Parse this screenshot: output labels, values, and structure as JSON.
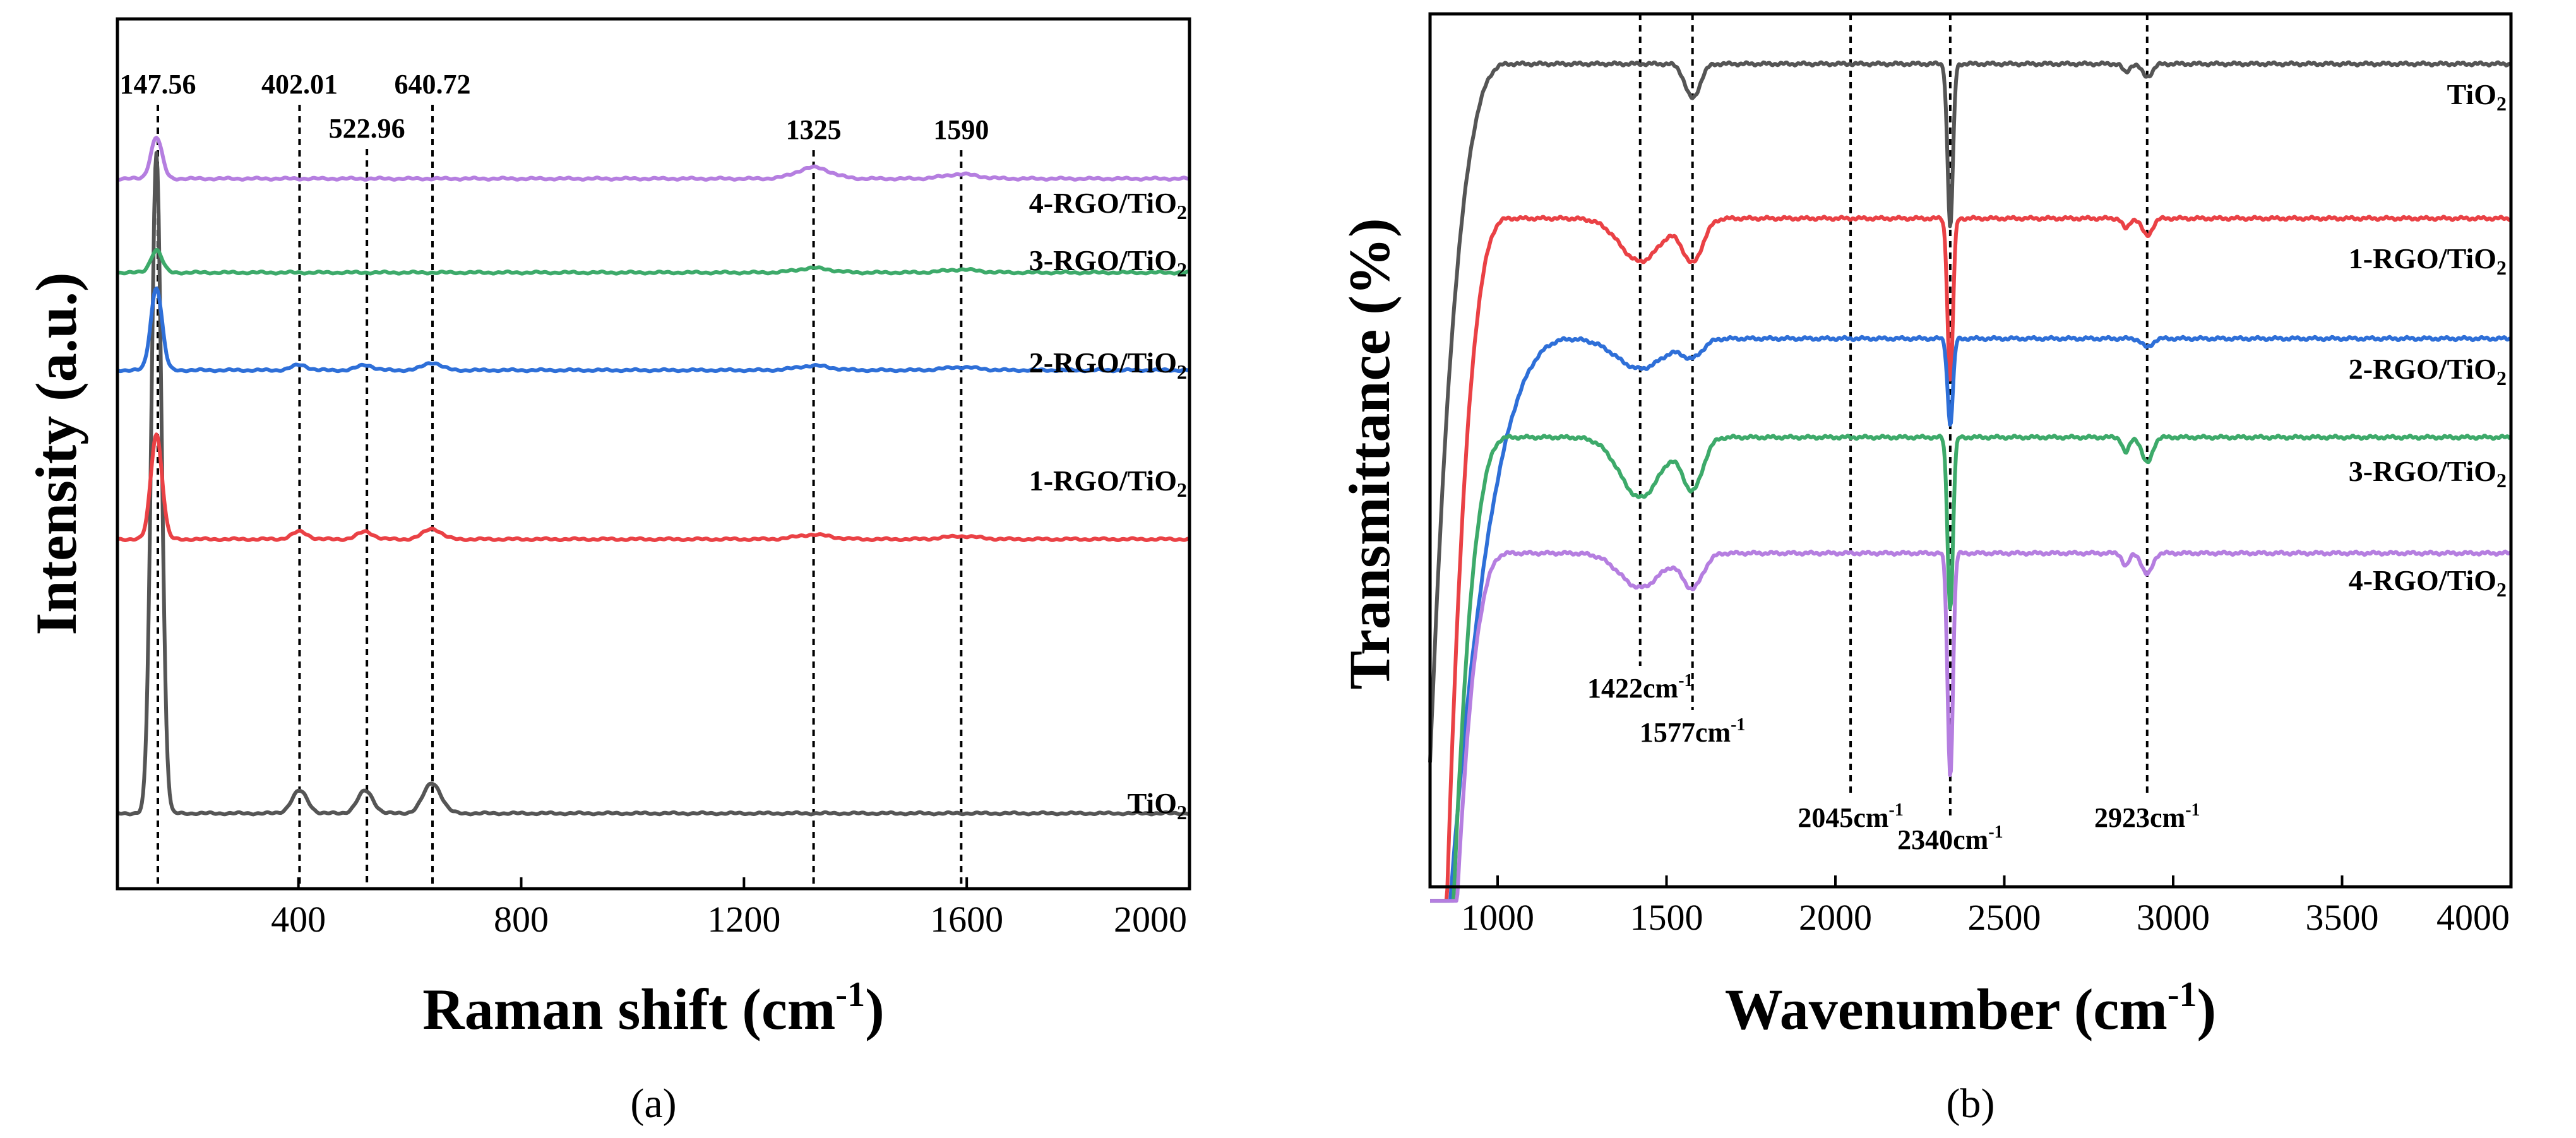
{
  "chart_data": [
    {
      "panel": "a",
      "panel_label": "(a)",
      "type": "line",
      "title": "",
      "xlabel": "Raman shift (cm⁻¹)",
      "xlabel_main": "Raman shift (cm",
      "xlabel_sup": "-1",
      "xlabel_close": ")",
      "ylabel": "Intensity (a.u.)",
      "xlim": [
        75,
        2000
      ],
      "ylim": [
        0,
        1
      ],
      "xticks": [
        400,
        800,
        1200,
        1600,
        2000
      ],
      "xtick_labels": [
        "400",
        "800",
        "1200",
        "1600",
        "2000"
      ],
      "reference_lines": [
        {
          "x": 147.56,
          "label": "147.56"
        },
        {
          "x": 402.01,
          "label": "402.01"
        },
        {
          "x": 522.96,
          "label": "522.96"
        },
        {
          "x": 640.72,
          "label": "640.72"
        },
        {
          "x": 1325,
          "label": "1325"
        },
        {
          "x": 1590,
          "label": "1590"
        }
      ],
      "series": [
        {
          "name": "TiO2",
          "label_main": "TiO",
          "label_sub": "2",
          "color": "#555555",
          "baseline": 0.06,
          "peaks": [
            [
              145,
              0.88,
              9
            ],
            [
              402,
              0.03,
              14
            ],
            [
              520,
              0.03,
              14
            ],
            [
              640,
              0.04,
              16
            ]
          ]
        },
        {
          "name": "1-RGO/TiO2",
          "label_main": "1-RGO/TiO",
          "label_sub": "2",
          "color": "#ea4145",
          "baseline": 0.425,
          "peaks": [
            [
              145,
              0.14,
              10
            ],
            [
              402,
              0.01,
              14
            ],
            [
              520,
              0.01,
              14
            ],
            [
              640,
              0.014,
              16
            ],
            [
              1325,
              0.006,
              30
            ],
            [
              1590,
              0.004,
              30
            ]
          ]
        },
        {
          "name": "2-RGO/TiO2",
          "label_main": "2-RGO/TiO",
          "label_sub": "2",
          "color": "#2e6fd8",
          "baseline": 0.65,
          "peaks": [
            [
              145,
              0.11,
              10
            ],
            [
              402,
              0.007,
              14
            ],
            [
              520,
              0.007,
              14
            ],
            [
              640,
              0.01,
              16
            ],
            [
              1325,
              0.006,
              30
            ],
            [
              1590,
              0.004,
              30
            ]
          ]
        },
        {
          "name": "3-RGO/TiO2",
          "label_main": "3-RGO/TiO",
          "label_sub": "2",
          "color": "#3daa6a",
          "baseline": 0.78,
          "peaks": [
            [
              145,
              0.03,
              10
            ],
            [
              1325,
              0.006,
              30
            ],
            [
              1590,
              0.004,
              30
            ]
          ]
        },
        {
          "name": "4-RGO/TiO2",
          "label_main": "4-RGO/TiO",
          "label_sub": "2",
          "color": "#b57ee0",
          "baseline": 0.905,
          "peaks": [
            [
              145,
              0.055,
              10
            ],
            [
              1325,
              0.015,
              30
            ],
            [
              1590,
              0.006,
              30
            ]
          ]
        }
      ]
    },
    {
      "panel": "b",
      "panel_label": "(b)",
      "type": "line",
      "title": "",
      "xlabel": "Wavenumber (cm⁻¹)",
      "xlabel_main": "Wavenumber (cm",
      "xlabel_sup": "-1",
      "xlabel_close": ")",
      "ylabel": "Transmittance (%)",
      "xlim": [
        800,
        4000
      ],
      "ylim": [
        0,
        1
      ],
      "xticks": [
        1000,
        1500,
        2000,
        2500,
        3000,
        3500,
        4000
      ],
      "xtick_labels": [
        "1000",
        "1500",
        "2000",
        "2500",
        "3000",
        "3500",
        "4000"
      ],
      "reference_lines": [
        {
          "x": 1422,
          "label": "1422cm",
          "label_sup": "-1"
        },
        {
          "x": 1577,
          "label": "1577cm",
          "label_sup": "-1"
        },
        {
          "x": 2045,
          "label": "2045cm",
          "label_sup": "-1"
        },
        {
          "x": 2340,
          "label": "2340cm",
          "label_sup": "-1"
        },
        {
          "x": 2923,
          "label": "2923cm",
          "label_sup": "-1"
        }
      ],
      "series": [
        {
          "name": "TiO2",
          "label_main": "TiO",
          "label_sub": "2",
          "color": "#555555",
          "plateau": 0.955,
          "rise_start": 800,
          "rise_end": 1040,
          "start_value": 0.14,
          "dips": [
            [
              1577,
              0.04,
              22
            ],
            [
              2340,
              0.19,
              8
            ],
            [
              2923,
              0.015,
              15
            ],
            [
              2860,
              0.01,
              10
            ]
          ]
        },
        {
          "name": "1-RGO/TiO2",
          "label_main": "1-RGO/TiO",
          "label_sub": "2",
          "color": "#ea4145",
          "plateau": 0.775,
          "rise_start": 850,
          "rise_end": 1040,
          "start_value": -0.02,
          "dips": [
            [
              1422,
              0.05,
              60
            ],
            [
              1577,
              0.05,
              30
            ],
            [
              2340,
              0.19,
              8
            ],
            [
              2923,
              0.02,
              15
            ],
            [
              2860,
              0.012,
              10
            ]
          ]
        },
        {
          "name": "2-RGO/TiO2",
          "label_main": "2-RGO/TiO",
          "label_sub": "2",
          "color": "#2e6fd8",
          "plateau": 0.635,
          "rise_start": 860,
          "rise_end": 1240,
          "start_value": -0.02,
          "dips": [
            [
              1422,
              0.035,
              70
            ],
            [
              1577,
              0.02,
              30
            ],
            [
              2340,
              0.1,
              8
            ],
            [
              2923,
              0.01,
              15
            ]
          ]
        },
        {
          "name": "3-RGO/TiO2",
          "label_main": "3-RGO/TiO",
          "label_sub": "2",
          "color": "#3daa6a",
          "plateau": 0.52,
          "rise_start": 870,
          "rise_end": 1040,
          "start_value": -0.02,
          "dips": [
            [
              1422,
              0.07,
              60
            ],
            [
              1577,
              0.06,
              30
            ],
            [
              2340,
              0.2,
              8
            ],
            [
              2923,
              0.03,
              15
            ],
            [
              2860,
              0.018,
              10
            ]
          ]
        },
        {
          "name": "4-RGO/TiO2",
          "label_main": "4-RGO/TiO",
          "label_sub": "2",
          "color": "#b57ee0",
          "plateau": 0.385,
          "rise_start": 880,
          "rise_end": 1040,
          "start_value": -0.02,
          "dips": [
            [
              1422,
              0.04,
              60
            ],
            [
              1577,
              0.04,
              30
            ],
            [
              2340,
              0.26,
              8
            ],
            [
              2923,
              0.025,
              15
            ],
            [
              2860,
              0.015,
              10
            ]
          ]
        }
      ]
    }
  ]
}
